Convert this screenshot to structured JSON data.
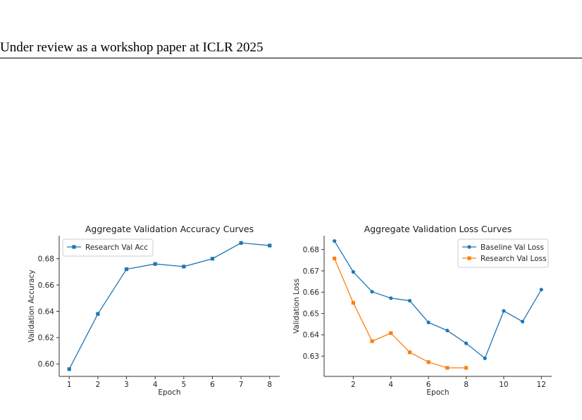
{
  "page": {
    "header_text": "Under review as a workshop paper at ICLR 2025"
  },
  "chart_data": [
    {
      "type": "line",
      "title": "Aggregate Validation Accuracy Curves",
      "xlabel": "Epoch",
      "ylabel": "Validation Accuracy",
      "xlim": [
        0.65,
        8.35
      ],
      "ylim": [
        0.5905,
        0.6975
      ],
      "xticks": [
        1,
        2,
        3,
        4,
        5,
        6,
        7,
        8
      ],
      "yticks": [
        0.6,
        0.62,
        0.64,
        0.66,
        0.68
      ],
      "ytick_labels": [
        "0.60",
        "0.62",
        "0.64",
        "0.66",
        "0.68"
      ],
      "grid": false,
      "legend_position": "upper-left",
      "series": [
        {
          "name": "Research Val Acc",
          "marker": "square",
          "color": "#1f77b4",
          "x": [
            1,
            2,
            3,
            4,
            5,
            6,
            7,
            8
          ],
          "y": [
            0.596,
            0.638,
            0.672,
            0.676,
            0.674,
            0.68,
            0.692,
            0.69
          ]
        }
      ]
    },
    {
      "type": "line",
      "title": "Aggregate Validation Loss Curves",
      "xlabel": "Epoch",
      "ylabel": "Validation Loss",
      "xlim": [
        0.45,
        12.55
      ],
      "ylim": [
        0.6205,
        0.6865
      ],
      "xticks": [
        2,
        4,
        6,
        8,
        10,
        12
      ],
      "yticks": [
        0.63,
        0.64,
        0.65,
        0.66,
        0.67,
        0.68
      ],
      "ytick_labels": [
        "0.63",
        "0.64",
        "0.65",
        "0.66",
        "0.67",
        "0.68"
      ],
      "grid": false,
      "legend_position": "upper-right",
      "series": [
        {
          "name": "Baseline Val Loss",
          "marker": "circle",
          "color": "#1f77b4",
          "x": [
            1,
            2,
            3,
            4,
            5,
            6,
            7,
            8,
            9,
            10,
            11,
            12
          ],
          "y": [
            0.684,
            0.6695,
            0.6602,
            0.6572,
            0.656,
            0.6458,
            0.642,
            0.636,
            0.629,
            0.6512,
            0.6462,
            0.6612
          ]
        },
        {
          "name": "Research Val Loss",
          "marker": "square",
          "color": "#ff7f0e",
          "x": [
            1,
            2,
            3,
            4,
            5,
            6,
            7,
            8
          ],
          "y": [
            0.6758,
            0.655,
            0.637,
            0.6408,
            0.6318,
            0.6272,
            0.6245,
            0.6245
          ]
        }
      ]
    }
  ]
}
